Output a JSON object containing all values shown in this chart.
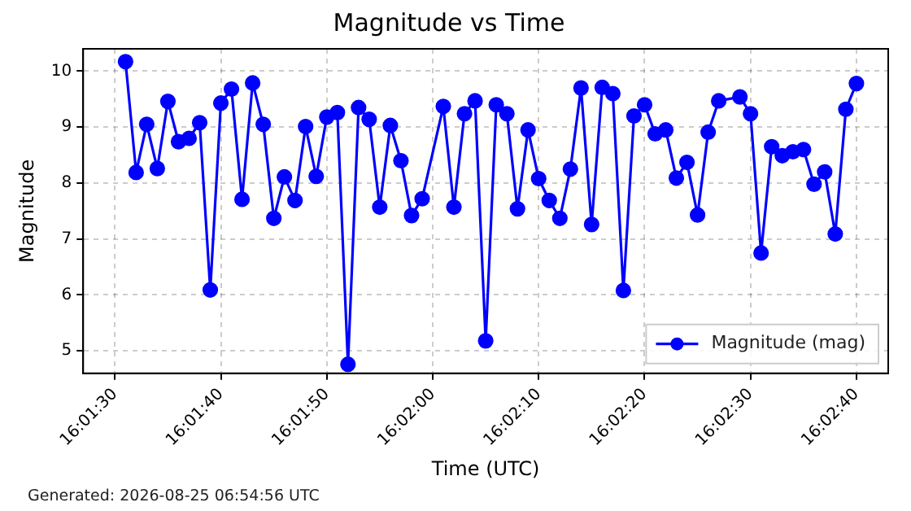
{
  "chart_data": {
    "type": "line",
    "title": "Magnitude vs Time",
    "xlabel": "Time (UTC)",
    "ylabel": "Magnitude",
    "annotations": [
      "Generated: 2026-08-25 06:54:56 UTC"
    ],
    "x": [
      16.025278,
      16.025556,
      16.025833,
      16.026111,
      16.026389,
      16.026667,
      16.026944,
      16.027222,
      16.0275,
      16.027778,
      16.028056,
      16.028333,
      16.028611,
      16.028889,
      16.029167,
      16.029444,
      16.029722,
      16.03,
      16.030278,
      16.030556,
      16.030833,
      16.031111,
      16.031389,
      16.031667,
      16.031944,
      16.032222,
      16.0325,
      16.032778,
      16.033056,
      16.033611,
      16.033889,
      16.034167,
      16.034444,
      16.034722,
      16.035,
      16.035278,
      16.035556,
      16.035833,
      16.036111,
      16.036389,
      16.036667,
      16.036944,
      16.037222,
      16.0375,
      16.037778,
      16.038056,
      16.038333,
      16.038611,
      16.038889,
      16.039167,
      16.039444,
      16.039722,
      16.04,
      16.040278,
      16.040556,
      16.040833,
      16.041389,
      16.041667,
      16.041944,
      16.042222,
      16.0425,
      16.042778,
      16.043056,
      16.043333,
      16.043611,
      16.043889,
      16.044167,
      16.044444
    ],
    "series": [
      {
        "name": "Magnitude (mag)",
        "color": "#0000ff",
        "values": [
          10.17,
          8.19,
          9.05,
          8.26,
          9.46,
          8.74,
          8.8,
          9.08,
          6.09,
          9.43,
          9.68,
          7.71,
          9.79,
          9.05,
          7.37,
          8.11,
          7.69,
          9.01,
          8.12,
          9.18,
          9.26,
          4.76,
          9.35,
          9.14,
          7.57,
          9.03,
          8.4,
          7.42,
          7.72,
          9.37,
          7.57,
          9.24,
          9.47,
          5.18,
          9.4,
          9.24,
          7.54,
          8.95,
          8.08,
          7.69,
          7.37,
          8.25,
          9.7,
          7.26,
          9.71,
          9.6,
          6.08,
          9.2,
          9.4,
          8.88,
          8.95,
          8.09,
          8.37,
          7.43,
          8.91,
          9.47,
          9.54,
          9.24,
          6.75,
          8.65,
          8.49,
          8.56,
          8.6,
          7.98,
          8.2,
          7.09,
          9.32,
          9.78
        ]
      }
    ],
    "xlim": [
      16.024167,
      16.045278
    ],
    "xticks": [
      {
        "value": 16.025,
        "label": "16:01:30"
      },
      {
        "value": 16.027778,
        "label": "16:01:40"
      },
      {
        "value": 16.030556,
        "label": "16:01:50"
      },
      {
        "value": 16.033333,
        "label": "16:02:00"
      },
      {
        "value": 16.036111,
        "label": "16:02:10"
      },
      {
        "value": 16.038889,
        "label": "16:02:20"
      },
      {
        "value": 16.041667,
        "label": "16:02:30"
      },
      {
        "value": 16.044444,
        "label": "16:02:40"
      }
    ],
    "ylim": [
      4.6,
      10.4
    ],
    "yticks": [
      5,
      6,
      7,
      8,
      9,
      10
    ],
    "grid": true,
    "legend": "bottom right",
    "marker": "circle",
    "line_style": "solid"
  }
}
